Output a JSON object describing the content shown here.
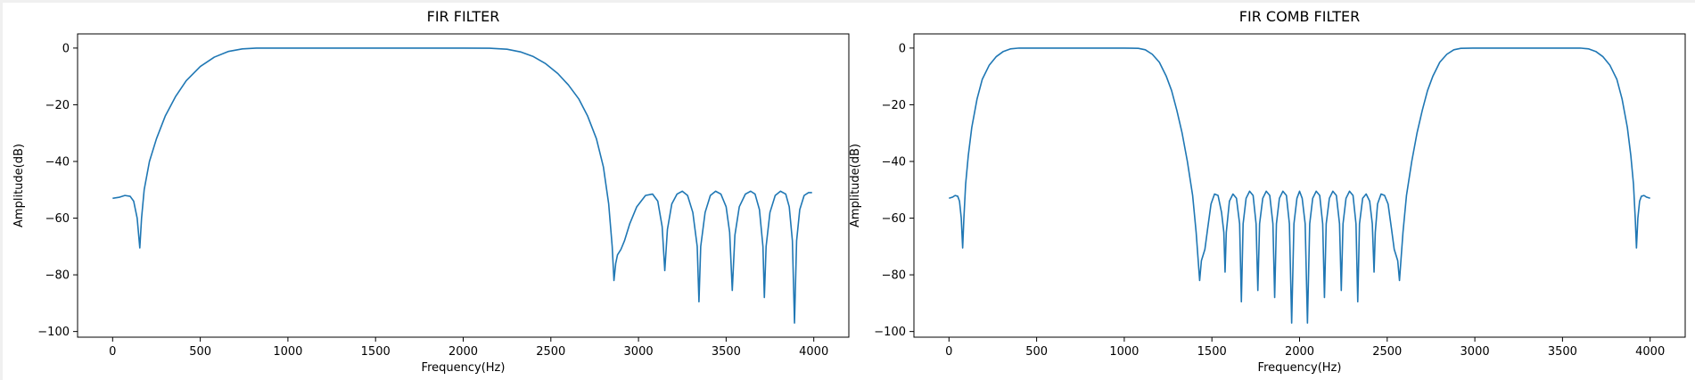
{
  "chart_data": [
    {
      "type": "line",
      "title": "FIR FILTER",
      "xlabel": "Frequency(Hz)",
      "ylabel": "Amplitude(dB)",
      "xlim": [
        -200,
        4200
      ],
      "ylim": [
        -102,
        5
      ],
      "xticks": [
        0,
        500,
        1000,
        1500,
        2000,
        2500,
        3000,
        3500,
        4000
      ],
      "yticks": [
        0,
        -20,
        -40,
        -60,
        -80,
        -100
      ],
      "grid": false,
      "color": "#1f77b4",
      "series": [
        {
          "points": [
            [
              0,
              -53
            ],
            [
              40,
              -52.6
            ],
            [
              70,
              -52
            ],
            [
              100,
              -52.3
            ],
            [
              120,
              -54
            ],
            [
              140,
              -60
            ],
            [
              155,
              -70.5
            ],
            [
              165,
              -60
            ],
            [
              180,
              -50
            ],
            [
              210,
              -40
            ],
            [
              250,
              -32
            ],
            [
              300,
              -24
            ],
            [
              360,
              -17
            ],
            [
              420,
              -11.5
            ],
            [
              500,
              -6.5
            ],
            [
              580,
              -3.2
            ],
            [
              660,
              -1.2
            ],
            [
              740,
              -0.3
            ],
            [
              820,
              0
            ],
            [
              1000,
              0
            ],
            [
              1500,
              0
            ],
            [
              2000,
              0
            ],
            [
              2150,
              -0.05
            ],
            [
              2250,
              -0.4
            ],
            [
              2330,
              -1.4
            ],
            [
              2400,
              -3
            ],
            [
              2470,
              -5.5
            ],
            [
              2540,
              -9
            ],
            [
              2600,
              -13
            ],
            [
              2660,
              -18
            ],
            [
              2710,
              -24
            ],
            [
              2760,
              -32
            ],
            [
              2800,
              -42
            ],
            [
              2830,
              -55
            ],
            [
              2850,
              -70
            ],
            [
              2860,
              -82
            ],
            [
              2870,
              -76
            ],
            [
              2880,
              -73
            ],
            [
              2900,
              -71
            ],
            [
              2920,
              -68
            ],
            [
              2950,
              -62
            ],
            [
              2990,
              -56
            ],
            [
              3040,
              -52
            ],
            [
              3080,
              -51.5
            ],
            [
              3110,
              -54
            ],
            [
              3135,
              -63
            ],
            [
              3150,
              -78.5
            ],
            [
              3165,
              -64
            ],
            [
              3190,
              -55
            ],
            [
              3220,
              -51.5
            ],
            [
              3250,
              -50.5
            ],
            [
              3280,
              -52
            ],
            [
              3310,
              -58
            ],
            [
              3335,
              -70
            ],
            [
              3345,
              -89.5
            ],
            [
              3355,
              -70
            ],
            [
              3380,
              -58
            ],
            [
              3410,
              -52
            ],
            [
              3440,
              -50.5
            ],
            [
              3470,
              -51.5
            ],
            [
              3500,
              -56
            ],
            [
              3520,
              -65
            ],
            [
              3535,
              -85.5
            ],
            [
              3550,
              -66
            ],
            [
              3575,
              -56
            ],
            [
              3610,
              -51.5
            ],
            [
              3640,
              -50.5
            ],
            [
              3665,
              -51.5
            ],
            [
              3690,
              -57
            ],
            [
              3710,
              -70
            ],
            [
              3718,
              -88
            ],
            [
              3728,
              -70
            ],
            [
              3750,
              -58
            ],
            [
              3780,
              -52
            ],
            [
              3810,
              -50.5
            ],
            [
              3840,
              -51.5
            ],
            [
              3860,
              -56
            ],
            [
              3878,
              -68
            ],
            [
              3890,
              -97
            ],
            [
              3902,
              -68
            ],
            [
              3920,
              -57
            ],
            [
              3945,
              -52
            ],
            [
              3970,
              -51
            ],
            [
              3990,
              -51
            ]
          ]
        }
      ]
    },
    {
      "type": "line",
      "title": "FIR COMB FILTER",
      "xlabel": "Frequency(Hz)",
      "ylabel": "Amplitude(dB)",
      "xlim": [
        -200,
        4200
      ],
      "ylim": [
        -102,
        5
      ],
      "xticks": [
        0,
        500,
        1000,
        1500,
        2000,
        2500,
        3000,
        3500,
        4000
      ],
      "yticks": [
        0,
        -20,
        -40,
        -60,
        -80,
        -100
      ],
      "grid": false,
      "color": "#1f77b4",
      "series": [
        {
          "points": [
            [
              0,
              -53
            ],
            [
              20,
              -52.6
            ],
            [
              35,
              -52
            ],
            [
              50,
              -52.3
            ],
            [
              60,
              -54
            ],
            [
              70,
              -60
            ],
            [
              78,
              -70.5
            ],
            [
              85,
              -60
            ],
            [
              95,
              -48
            ],
            [
              110,
              -38
            ],
            [
              130,
              -28
            ],
            [
              160,
              -18
            ],
            [
              190,
              -11
            ],
            [
              230,
              -6
            ],
            [
              270,
              -3
            ],
            [
              310,
              -1.2
            ],
            [
              350,
              -0.3
            ],
            [
              400,
              0
            ],
            [
              800,
              0
            ],
            [
              1000,
              0
            ],
            [
              1080,
              -0.1
            ],
            [
              1120,
              -0.6
            ],
            [
              1160,
              -2.2
            ],
            [
              1200,
              -5
            ],
            [
              1240,
              -10
            ],
            [
              1270,
              -15
            ],
            [
              1300,
              -22
            ],
            [
              1330,
              -30
            ],
            [
              1360,
              -40
            ],
            [
              1390,
              -52
            ],
            [
              1410,
              -65
            ],
            [
              1430,
              -82
            ],
            [
              1440,
              -75
            ],
            [
              1450,
              -73
            ],
            [
              1460,
              -71
            ],
            [
              1475,
              -64
            ],
            [
              1495,
              -55
            ],
            [
              1515,
              -51.5
            ],
            [
              1535,
              -52
            ],
            [
              1555,
              -58
            ],
            [
              1568,
              -65
            ],
            [
              1575,
              -79
            ],
            [
              1582,
              -65
            ],
            [
              1600,
              -54
            ],
            [
              1620,
              -51.5
            ],
            [
              1640,
              -53
            ],
            [
              1658,
              -62
            ],
            [
              1668,
              -89.5
            ],
            [
              1678,
              -62
            ],
            [
              1695,
              -53
            ],
            [
              1715,
              -50.5
            ],
            [
              1735,
              -52
            ],
            [
              1752,
              -62
            ],
            [
              1762,
              -85.5
            ],
            [
              1772,
              -62
            ],
            [
              1790,
              -53
            ],
            [
              1810,
              -50.5
            ],
            [
              1830,
              -52
            ],
            [
              1848,
              -62
            ],
            [
              1858,
              -88
            ],
            [
              1868,
              -62
            ],
            [
              1885,
              -53
            ],
            [
              1905,
              -50.5
            ],
            [
              1925,
              -52
            ],
            [
              1942,
              -62
            ],
            [
              1955,
              -97
            ],
            [
              1968,
              -62
            ],
            [
              1985,
              -53
            ],
            [
              2000,
              -50.5
            ],
            [
              2015,
              -53
            ],
            [
              2032,
              -62
            ],
            [
              2045,
              -97
            ],
            [
              2058,
              -62
            ],
            [
              2075,
              -53
            ],
            [
              2095,
              -50.5
            ],
            [
              2115,
              -52
            ],
            [
              2132,
              -62
            ],
            [
              2142,
              -88
            ],
            [
              2152,
              -62
            ],
            [
              2170,
              -53
            ],
            [
              2190,
              -50.5
            ],
            [
              2210,
              -52
            ],
            [
              2228,
              -62
            ],
            [
              2238,
              -85.5
            ],
            [
              2248,
              -62
            ],
            [
              2265,
              -53
            ],
            [
              2285,
              -50.5
            ],
            [
              2305,
              -52
            ],
            [
              2322,
              -62
            ],
            [
              2332,
              -89.5
            ],
            [
              2342,
              -62
            ],
            [
              2360,
              -53
            ],
            [
              2380,
              -51.5
            ],
            [
              2400,
              -54
            ],
            [
              2415,
              -62
            ],
            [
              2425,
              -79
            ],
            [
              2432,
              -65
            ],
            [
              2445,
              -55
            ],
            [
              2465,
              -51.5
            ],
            [
              2485,
              -52
            ],
            [
              2505,
              -55
            ],
            [
              2525,
              -64
            ],
            [
              2540,
              -71
            ],
            [
              2550,
              -73
            ],
            [
              2560,
              -75
            ],
            [
              2570,
              -82
            ],
            [
              2590,
              -65
            ],
            [
              2610,
              -52
            ],
            [
              2640,
              -40
            ],
            [
              2670,
              -30
            ],
            [
              2700,
              -22
            ],
            [
              2730,
              -15
            ],
            [
              2760,
              -10
            ],
            [
              2800,
              -5
            ],
            [
              2840,
              -2.2
            ],
            [
              2880,
              -0.6
            ],
            [
              2920,
              -0.1
            ],
            [
              3000,
              0
            ],
            [
              3200,
              0
            ],
            [
              3600,
              0
            ],
            [
              3650,
              -0.3
            ],
            [
              3690,
              -1.2
            ],
            [
              3730,
              -3
            ],
            [
              3770,
              -6
            ],
            [
              3810,
              -11
            ],
            [
              3840,
              -18
            ],
            [
              3870,
              -28
            ],
            [
              3890,
              -38
            ],
            [
              3905,
              -48
            ],
            [
              3915,
              -60
            ],
            [
              3922,
              -70.5
            ],
            [
              3930,
              -60
            ],
            [
              3940,
              -54
            ],
            [
              3950,
              -52.3
            ],
            [
              3965,
              -52
            ],
            [
              3980,
              -52.6
            ],
            [
              4000,
              -53
            ]
          ]
        }
      ]
    }
  ]
}
